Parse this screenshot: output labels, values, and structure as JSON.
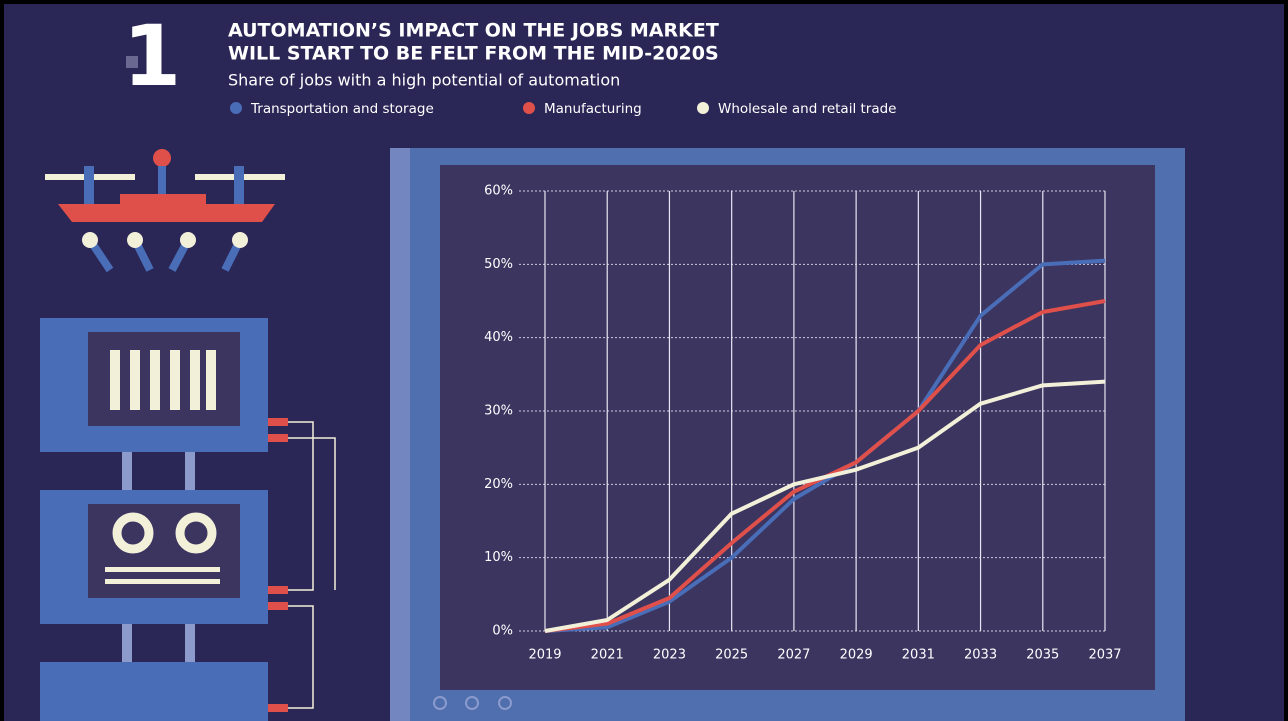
{
  "badge": "1",
  "chart_data": {
    "type": "line",
    "title": [
      "AUTOMATION’S IMPACT ON THE JOBS MARKET",
      "WILL START TO BE FELT FROM THE MID-2020S"
    ],
    "subtitle": "Share of jobs with a high potential of automation",
    "x": [
      2019,
      2021,
      2023,
      2025,
      2027,
      2029,
      2031,
      2033,
      2035,
      2037
    ],
    "xlim": [
      2019,
      2037
    ],
    "xticks": [
      2019,
      2021,
      2023,
      2025,
      2027,
      2029,
      2031,
      2033,
      2035,
      2037
    ],
    "ylim": [
      0,
      60
    ],
    "yticks": [
      {
        "value": 0,
        "label": "0%"
      },
      {
        "value": 10,
        "label": "10%"
      },
      {
        "value": 20,
        "label": "20%"
      },
      {
        "value": 30,
        "label": "30%"
      },
      {
        "value": 40,
        "label": "40%"
      },
      {
        "value": 50,
        "label": "50%"
      },
      {
        "value": 60,
        "label": "60%"
      }
    ],
    "grid": true,
    "series": [
      {
        "name": "Transportation and storage",
        "color": "#4a6db8",
        "values": [
          0,
          0.5,
          4,
          10,
          18,
          23,
          30,
          43,
          50,
          50.5
        ]
      },
      {
        "name": "Manufacturing",
        "color": "#e0504a",
        "values": [
          0,
          1,
          4.5,
          12,
          19,
          23,
          30,
          39,
          43.5,
          45
        ]
      },
      {
        "name": "Wholesale and retail trade",
        "color": "#f3f0da",
        "values": [
          0,
          1.5,
          7,
          16,
          20,
          22,
          25,
          31,
          33.5,
          34
        ]
      }
    ]
  }
}
